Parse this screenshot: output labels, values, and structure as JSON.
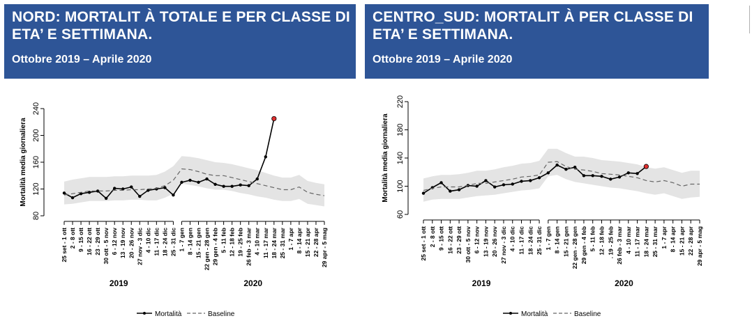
{
  "panels": [
    {
      "title": "NORD: MORTALIT À TOTALE E PER CLASSE DI ETA’ E SETTIMANA.",
      "subtitle": "Ottobre 2019 – Aprile 2020",
      "chart_data": {
        "type": "line",
        "ylabel": "Mortalità media giornaliera",
        "ylim": [
          80,
          240
        ],
        "yticks": [
          80,
          120,
          160,
          200,
          240
        ],
        "grid": false,
        "categories": [
          "25 set - 1 ott",
          "2 - 8 ott",
          "9 - 15 ott",
          "16 - 22 ott",
          "23 - 29 ott",
          "30 ott - 5 nov",
          "6 - 12 nov",
          "13 - 19 nov",
          "20 - 26 nov",
          "27 nov - 3 dic",
          "4 - 10 dic",
          "11 - 17 dic",
          "18 - 24 dic",
          "25 - 31 dic",
          "1 - 7 gen",
          "8 - 14 gen",
          "15 - 21 gen",
          "22 gen - 28 gen",
          "29 gen - 4 feb",
          "5 - 11 feb",
          "12 - 18 feb",
          "19 - 25 feb",
          "26 feb - 3 mar",
          "4 - 10 mar",
          "11 - 17 mar",
          "18 - 24 mar",
          "25 - 31 mar",
          "1 - 7 apr",
          "8 - 14 apr",
          "15 - 21 apr",
          "22 - 28 apr",
          "29 apr - 5 mag"
        ],
        "groups": [
          {
            "label": "2019",
            "from": 0,
            "to": 13
          },
          {
            "label": "2020",
            "from": 14,
            "to": 31
          }
        ],
        "series": [
          {
            "name": "Mortalità",
            "style": "solid-markers",
            "color": "#000000",
            "values": [
              114,
              107,
              113,
              115,
              117,
              106,
              121,
              120,
              123,
              109,
              118,
              120,
              122,
              111,
              130,
              133,
              130,
              135,
              127,
              124,
              124,
              126,
              125,
              135,
              168,
              225,
              null,
              null,
              null,
              null,
              null,
              null
            ]
          },
          {
            "name": "Baseline",
            "style": "dashed",
            "color": "#666666",
            "values": [
              111,
              113,
              115,
              117,
              117,
              117,
              118,
              118,
              119,
              119,
              120,
              121,
              125,
              133,
              150,
              149,
              146,
              142,
              140,
              140,
              137,
              134,
              131,
              128,
              125,
              122,
              119,
              119,
              123,
              115,
              112,
              110
            ]
          }
        ],
        "band": {
          "lower": [
            97,
            98,
            100,
            102,
            102,
            102,
            103,
            103,
            104,
            104,
            103,
            103,
            107,
            113,
            128,
            126,
            124,
            121,
            119,
            119,
            117,
            114,
            112,
            109,
            107,
            104,
            102,
            102,
            105,
            98,
            96,
            94
          ],
          "upper": [
            131,
            134,
            136,
            138,
            138,
            138,
            139,
            139,
            140,
            140,
            140,
            141,
            146,
            154,
            169,
            168,
            166,
            163,
            160,
            159,
            157,
            154,
            151,
            148,
            144,
            140,
            137,
            137,
            141,
            132,
            129,
            127
          ],
          "color": "#e4e4e4"
        },
        "highlight": {
          "index": 25,
          "color": "#e03030"
        },
        "legend": "bottom-center"
      }
    },
    {
      "title": "CENTRO_SUD: MORTALIT À PER CLASSE DI ETA’ E SETTIMANA.",
      "subtitle": "Ottobre 2019 – Aprile 2020",
      "chart_data": {
        "type": "line",
        "ylabel": "Mortalità media giornaliera",
        "ylim": [
          60,
          220
        ],
        "yticks": [
          60,
          100,
          140,
          180,
          220
        ],
        "grid": false,
        "categories": [
          "25 set - 1 ott",
          "2 - 8 ott",
          "9 - 15 ott",
          "16 - 22 ott",
          "23 - 29 ott",
          "30 ott - 5 nov",
          "6 - 12 nov",
          "13 - 19 nov",
          "20 - 26 nov",
          "27 nov - 3 dic",
          "4 - 10 dic",
          "11 - 17 dic",
          "18 - 24 dic",
          "25 - 31 dic",
          "1 - 7 gen",
          "8 - 14 gen",
          "15 - 21 gen",
          "22 gen - 28 gen",
          "29 gen - 4 feb",
          "5 - 11 feb",
          "12 - 18 feb",
          ". 19 - 25 feb",
          "26 feb - 3 mar",
          "4 - 10 mar",
          "11 - 17 mar",
          "18 - 24 mar",
          "25 - 31 mar",
          "1 - 7 apr",
          "8 - 14 apr",
          "15 - 21 apr",
          "22 - 28 apr",
          "29 apr - 5 mag"
        ],
        "groups": [
          {
            "label": "2019",
            "from": 0,
            "to": 13
          },
          {
            "label": "2020",
            "from": 14,
            "to": 31
          }
        ],
        "series": [
          {
            "name": "Mortalità",
            "style": "solid-markers",
            "color": "#000000",
            "values": [
              90,
              98,
              105,
              93,
              95,
              101,
              100,
              108,
              99,
              102,
              103,
              107,
              108,
              112,
              119,
              130,
              124,
              127,
              115,
              115,
              114,
              110,
              113,
              119,
              118,
              128,
              null,
              null,
              null,
              null,
              null,
              null
            ]
          },
          {
            "name": "Baseline",
            "style": "dashed",
            "color": "#666666",
            "values": [
              94,
              97,
              99,
              99,
              99,
              101,
              104,
              104,
              106,
              108,
              110,
              113,
              114,
              116,
              134,
              135,
              128,
              124,
              123,
              121,
              118,
              117,
              116,
              114,
              112,
              108,
              106,
              108,
              105,
              100,
              103,
              103
            ]
          }
        ],
        "band": {
          "lower": [
            78,
            81,
            82,
            82,
            82,
            84,
            86,
            87,
            88,
            90,
            92,
            94,
            95,
            97,
            114,
            116,
            110,
            106,
            104,
            102,
            100,
            98,
            97,
            95,
            93,
            90,
            88,
            90,
            86,
            82,
            84,
            85
          ],
          "upper": [
            111,
            114,
            116,
            116,
            117,
            119,
            122,
            122,
            124,
            127,
            129,
            132,
            133,
            136,
            153,
            153,
            147,
            142,
            142,
            140,
            137,
            136,
            135,
            133,
            131,
            127,
            125,
            127,
            123,
            119,
            122,
            122
          ],
          "color": "#e4e4e4"
        },
        "highlight": {
          "index": 25,
          "color": "#e03030"
        },
        "legend": "bottom-center"
      }
    }
  ]
}
